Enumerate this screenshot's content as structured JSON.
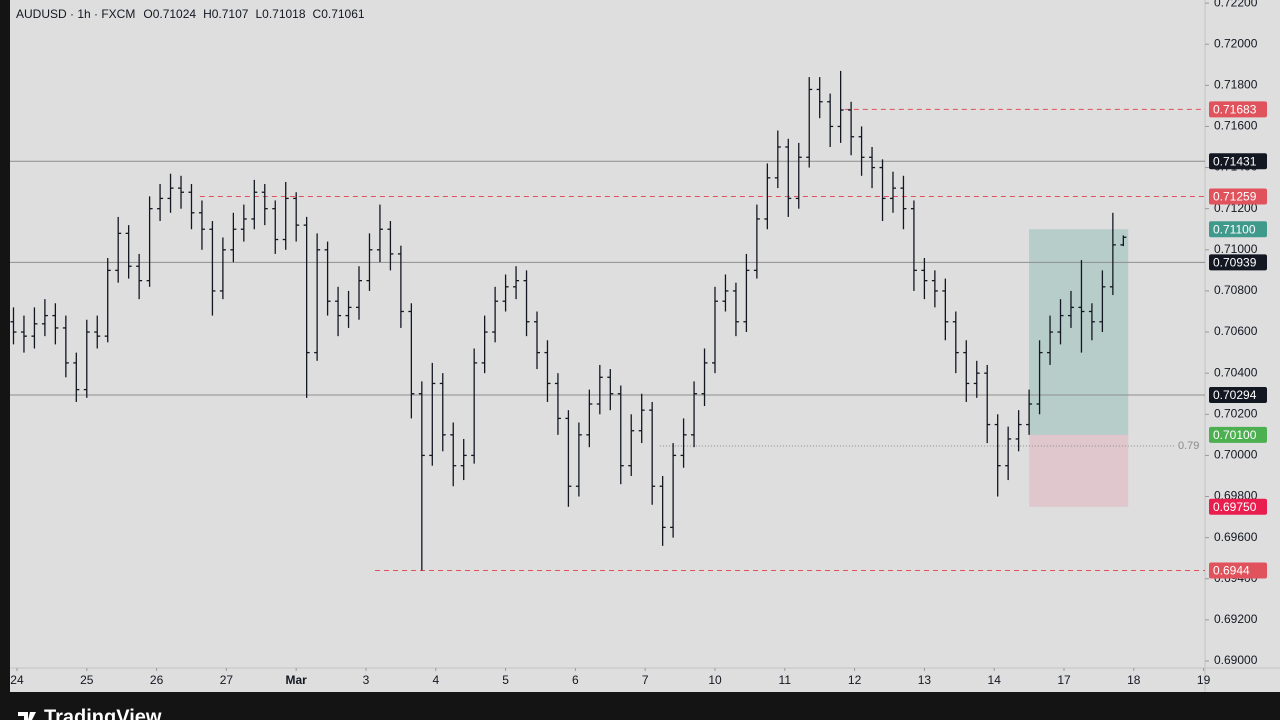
{
  "chart_data": {
    "type": "ohlc",
    "title": "AUDUSD · 1h · FXCM",
    "ohlc_prefixes": [
      "O",
      "H",
      "L",
      "C"
    ],
    "bar_color": "#131722",
    "x": [
      -0.05,
      0.1,
      0.25,
      0.4,
      0.55,
      0.7,
      0.85,
      1,
      1.15,
      1.3,
      1.45,
      1.6,
      1.75,
      1.9,
      2.05,
      2.2,
      2.35,
      2.5,
      2.65,
      2.8,
      2.95,
      3.1,
      3.25,
      3.4,
      3.55,
      3.7,
      3.85,
      4,
      4.15,
      4.3,
      4.45,
      4.6,
      4.75,
      4.9,
      5.05,
      5.2,
      5.35,
      5.5,
      5.65,
      5.8,
      5.95,
      6.1,
      6.25,
      6.4,
      6.55,
      6.7,
      6.85,
      7,
      7.15,
      7.3,
      7.45,
      7.6,
      7.75,
      7.9,
      8.05,
      8.2,
      8.35,
      8.5,
      8.65,
      8.8,
      8.95,
      9.1,
      9.25,
      9.4,
      9.55,
      9.7,
      9.85,
      10,
      10.15,
      10.3,
      10.45,
      10.6,
      10.75,
      10.9,
      11.05,
      11.2,
      11.35,
      11.5,
      11.65,
      11.8,
      11.95,
      12.1,
      12.25,
      12.4,
      12.55,
      12.7,
      12.85,
      13,
      13.15,
      13.3,
      13.45,
      13.6,
      13.75,
      13.9,
      14.05,
      14.2,
      14.35,
      14.5,
      14.65,
      14.8,
      14.95,
      15.1,
      15.25,
      15.4,
      15.55,
      15.7,
      15.85
    ],
    "open": [
      0.7065,
      0.706,
      0.7058,
      0.7064,
      0.7068,
      0.7062,
      0.7045,
      0.7032,
      0.706,
      0.7058,
      0.709,
      0.7108,
      0.7092,
      0.7085,
      0.712,
      0.7125,
      0.713,
      0.7128,
      0.7118,
      0.711,
      0.708,
      0.71,
      0.711,
      0.7115,
      0.7128,
      0.712,
      0.7105,
      0.7125,
      0.7112,
      0.705,
      0.71,
      0.7075,
      0.7068,
      0.7072,
      0.7085,
      0.71,
      0.711,
      0.7098,
      0.707,
      0.703,
      0.7,
      0.7035,
      0.701,
      0.6995,
      0.7,
      0.7045,
      0.706,
      0.7075,
      0.7082,
      0.7085,
      0.7065,
      0.705,
      0.7035,
      0.7018,
      0.6985,
      0.701,
      0.7025,
      0.7038,
      0.703,
      0.6995,
      0.7012,
      0.7022,
      0.6985,
      0.6965,
      0.7,
      0.701,
      0.703,
      0.7045,
      0.7075,
      0.708,
      0.7065,
      0.709,
      0.7115,
      0.7135,
      0.715,
      0.7125,
      0.7145,
      0.7178,
      0.7172,
      0.716,
      0.7168,
      0.7155,
      0.7145,
      0.714,
      0.7125,
      0.713,
      0.712,
      0.709,
      0.7085,
      0.708,
      0.7065,
      0.705,
      0.7035,
      0.704,
      0.7015,
      0.6995,
      0.7008,
      0.7015,
      0.7025,
      0.705,
      0.706,
      0.7068,
      0.7072,
      0.707,
      0.7065,
      0.7082,
      0.71024
    ],
    "high": [
      0.7072,
      0.7068,
      0.7072,
      0.7076,
      0.7074,
      0.7068,
      0.705,
      0.7066,
      0.7068,
      0.7096,
      0.7116,
      0.7112,
      0.7098,
      0.7126,
      0.7132,
      0.7137,
      0.7136,
      0.7132,
      0.7124,
      0.7114,
      0.7106,
      0.7118,
      0.7122,
      0.7134,
      0.7132,
      0.7124,
      0.7133,
      0.7128,
      0.7116,
      0.7108,
      0.7104,
      0.7082,
      0.708,
      0.7092,
      0.7108,
      0.7122,
      0.7114,
      0.7102,
      0.7074,
      0.7036,
      0.7045,
      0.704,
      0.7016,
      0.7008,
      0.7052,
      0.7068,
      0.7082,
      0.7088,
      0.7092,
      0.709,
      0.707,
      0.7056,
      0.704,
      0.7022,
      0.7016,
      0.7032,
      0.7044,
      0.7042,
      0.7034,
      0.702,
      0.703,
      0.7026,
      0.699,
      0.7006,
      0.7018,
      0.7036,
      0.7052,
      0.7082,
      0.7088,
      0.7084,
      0.7098,
      0.7122,
      0.7142,
      0.7158,
      0.7154,
      0.7152,
      0.7184,
      0.7184,
      0.7176,
      0.7187,
      0.7172,
      0.716,
      0.715,
      0.7144,
      0.7138,
      0.7136,
      0.7124,
      0.7096,
      0.709,
      0.7086,
      0.707,
      0.7056,
      0.7046,
      0.7044,
      0.702,
      0.7014,
      0.7022,
      0.7032,
      0.7056,
      0.7068,
      0.7076,
      0.708,
      0.7095,
      0.7074,
      0.709,
      0.7118,
      0.7107
    ],
    "low": [
      0.7054,
      0.705,
      0.7052,
      0.7058,
      0.7054,
      0.7038,
      0.7026,
      0.7028,
      0.7052,
      0.7055,
      0.7084,
      0.7086,
      0.7076,
      0.7082,
      0.7114,
      0.7118,
      0.712,
      0.711,
      0.71,
      0.7068,
      0.7076,
      0.7094,
      0.7104,
      0.711,
      0.7112,
      0.7098,
      0.71,
      0.7104,
      0.7028,
      0.7046,
      0.7068,
      0.7058,
      0.7062,
      0.7066,
      0.708,
      0.7094,
      0.709,
      0.7062,
      0.7018,
      0.6944,
      0.6995,
      0.7002,
      0.6985,
      0.6988,
      0.6996,
      0.704,
      0.7055,
      0.707,
      0.7076,
      0.7058,
      0.7042,
      0.7026,
      0.701,
      0.6975,
      0.698,
      0.7004,
      0.702,
      0.7022,
      0.6986,
      0.699,
      0.7006,
      0.6976,
      0.6956,
      0.696,
      0.6994,
      0.7004,
      0.7024,
      0.704,
      0.707,
      0.7058,
      0.706,
      0.7086,
      0.711,
      0.713,
      0.7116,
      0.712,
      0.714,
      0.7164,
      0.715,
      0.7152,
      0.7146,
      0.7136,
      0.713,
      0.7114,
      0.7118,
      0.711,
      0.708,
      0.7076,
      0.7072,
      0.7056,
      0.704,
      0.7026,
      0.7028,
      0.7006,
      0.698,
      0.6988,
      0.7002,
      0.701,
      0.702,
      0.7044,
      0.7054,
      0.7062,
      0.705,
      0.7056,
      0.706,
      0.7078,
      0.71018
    ],
    "close": [
      0.706,
      0.7058,
      0.7064,
      0.7068,
      0.7062,
      0.7045,
      0.7032,
      0.706,
      0.7058,
      0.709,
      0.7108,
      0.7092,
      0.7085,
      0.712,
      0.7125,
      0.713,
      0.7128,
      0.7118,
      0.711,
      0.708,
      0.71,
      0.711,
      0.7115,
      0.7128,
      0.712,
      0.7105,
      0.7125,
      0.7112,
      0.705,
      0.71,
      0.7075,
      0.7068,
      0.7072,
      0.7085,
      0.71,
      0.711,
      0.7098,
      0.707,
      0.703,
      0.7,
      0.7035,
      0.701,
      0.6995,
      0.7,
      0.7045,
      0.706,
      0.7075,
      0.7082,
      0.7085,
      0.7065,
      0.705,
      0.7035,
      0.7018,
      0.6985,
      0.701,
      0.7025,
      0.7038,
      0.703,
      0.6995,
      0.7012,
      0.7022,
      0.6985,
      0.6965,
      0.7,
      0.701,
      0.703,
      0.7045,
      0.7075,
      0.708,
      0.7065,
      0.709,
      0.7115,
      0.7135,
      0.715,
      0.7125,
      0.7145,
      0.7178,
      0.7172,
      0.716,
      0.7168,
      0.7155,
      0.7145,
      0.714,
      0.7125,
      0.713,
      0.712,
      0.709,
      0.7085,
      0.708,
      0.7065,
      0.705,
      0.7035,
      0.704,
      0.7015,
      0.6995,
      0.7008,
      0.7015,
      0.7025,
      0.705,
      0.706,
      0.7068,
      0.7072,
      0.707,
      0.7065,
      0.7082,
      0.71024,
      0.71061
    ],
    "xlim": [
      -0.1,
      17.02
    ],
    "xticks": [
      {
        "value": 0,
        "label": "24"
      },
      {
        "value": 1,
        "label": "25"
      },
      {
        "value": 2,
        "label": "26"
      },
      {
        "value": 3,
        "label": "27"
      },
      {
        "value": 4,
        "label": "Mar"
      },
      {
        "value": 5,
        "label": "3"
      },
      {
        "value": 6,
        "label": "4"
      },
      {
        "value": 7,
        "label": "5"
      },
      {
        "value": 8,
        "label": "6"
      },
      {
        "value": 9,
        "label": "7"
      },
      {
        "value": 10,
        "label": "10"
      },
      {
        "value": 11,
        "label": "11"
      },
      {
        "value": 12,
        "label": "12"
      },
      {
        "value": 13,
        "label": "13"
      },
      {
        "value": 14,
        "label": "14"
      },
      {
        "value": 15,
        "label": "17"
      },
      {
        "value": 16,
        "label": "18"
      },
      {
        "value": 17,
        "label": "19"
      }
    ],
    "ylim": [
      0.68966,
      0.72215
    ],
    "yticks": [
      {
        "value": 0.722,
        "label": "0.72200"
      },
      {
        "value": 0.72,
        "label": "0.72000"
      },
      {
        "value": 0.718,
        "label": "0.71800"
      },
      {
        "value": 0.716,
        "label": "0.71600"
      },
      {
        "value": 0.714,
        "label": "0.71400"
      },
      {
        "value": 0.712,
        "label": "0.71200"
      },
      {
        "value": 0.71,
        "label": "0.71000"
      },
      {
        "value": 0.708,
        "label": "0.70800"
      },
      {
        "value": 0.706,
        "label": "0.70600"
      },
      {
        "value": 0.704,
        "label": "0.70400"
      },
      {
        "value": 0.702,
        "label": "0.70200"
      },
      {
        "value": 0.7,
        "label": "0.70000"
      },
      {
        "value": 0.698,
        "label": "0.69800"
      },
      {
        "value": 0.696,
        "label": "0.69600"
      },
      {
        "value": 0.694,
        "label": "0.69400"
      },
      {
        "value": 0.692,
        "label": "0.69200"
      },
      {
        "value": 0.69,
        "label": "0.69000"
      }
    ],
    "horizontal_lines": [
      {
        "value": 0.71683,
        "style": "dashed",
        "color": "#e0525c",
        "from_x": 11.86
      },
      {
        "value": 0.71431,
        "style": "solid",
        "color": "#131722"
      },
      {
        "value": 0.71259,
        "style": "dashed",
        "color": "#e0525c",
        "from_x": 2.62
      },
      {
        "value": 0.70939,
        "style": "solid",
        "color": "#131722"
      },
      {
        "value": 0.70294,
        "style": "solid",
        "color": "#131722"
      },
      {
        "value": 0.6944,
        "style": "dashed",
        "color": "#e0525c",
        "from_x": 5.13
      }
    ],
    "position": {
      "target": {
        "value": 0.711,
        "label": "0.71100",
        "color": "#3f9a8c"
      },
      "entry": {
        "value": 0.701,
        "label": "0.70100",
        "color": "#4caf50"
      },
      "stop": {
        "value": 0.6975,
        "label": "0.69750",
        "color": "#e91e4f"
      },
      "x_from": 14.5,
      "x_to": 15.92
    },
    "fib_level": {
      "value": 0.70046,
      "label": "0.79",
      "x_from": 9.21,
      "x_to": 16.59
    }
  },
  "branding": "TradingView"
}
